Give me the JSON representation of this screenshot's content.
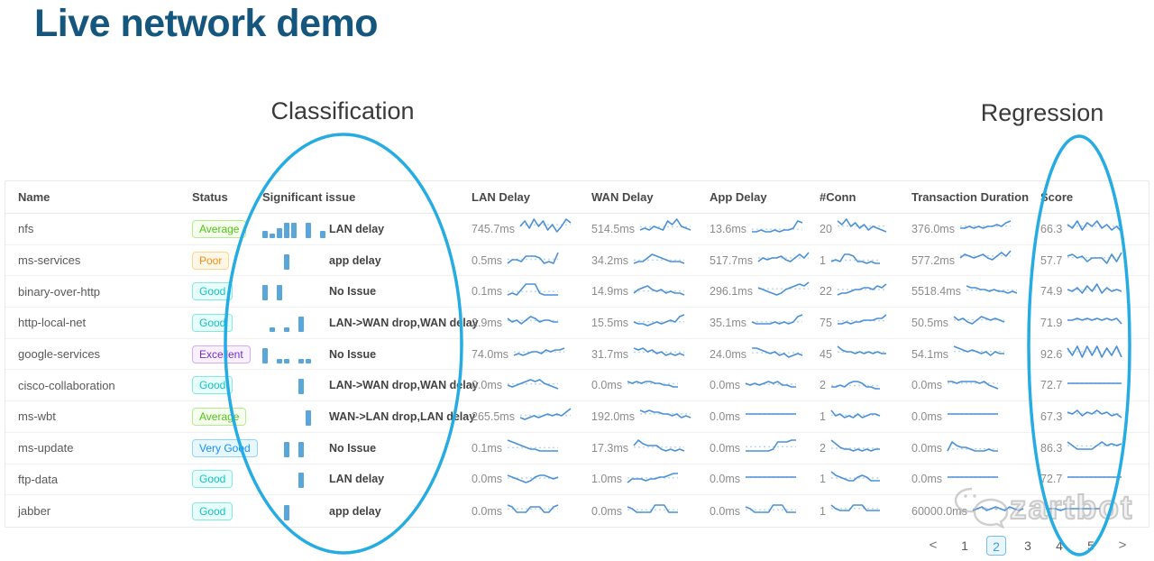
{
  "title": "Live network demo",
  "annotations": {
    "classification_label": "Classification",
    "regression_label": "Regression",
    "ellipse_color": "#25ace3"
  },
  "watermark": {
    "text": "zartbot",
    "icon": "wechat-chat-bubbles-icon"
  },
  "pagination": {
    "prev": "<",
    "next": ">",
    "pages": [
      "1",
      "2",
      "3",
      "4",
      "5"
    ],
    "active": "2"
  },
  "colors": {
    "title": "#15567f",
    "sparkline": "#4a90d9",
    "sparkline_dotted": "#b9d7f2",
    "issue_bar": "#58a6da"
  },
  "table": {
    "columns": [
      "Name",
      "Status",
      "Significant issue",
      "LAN Delay",
      "WAN Delay",
      "App Delay",
      "#Conn",
      "Transaction Duration",
      "Score"
    ],
    "rows": [
      {
        "name": "nfs",
        "status": "Average",
        "status_color": "green",
        "issue": "LAN delay",
        "issue_bars": [
          2,
          1,
          3,
          5,
          5,
          0,
          5,
          0,
          2
        ],
        "lan": "745.7ms",
        "wan": "514.5ms",
        "app": "13.6ms",
        "conn": "20",
        "trans": "376.0ms",
        "score": "66.3",
        "lan_s": [
          5,
          8,
          4,
          9,
          5,
          8,
          3,
          6,
          2,
          5,
          9,
          7
        ],
        "wan_s": [
          3,
          4,
          3,
          5,
          4,
          3,
          8,
          6,
          9,
          5,
          4,
          3
        ],
        "app_s": [
          2,
          2,
          3,
          2,
          2,
          3,
          2,
          3,
          3,
          4,
          8,
          7
        ],
        "conn_s": [
          8,
          6,
          9,
          5,
          7,
          4,
          6,
          3,
          5,
          4,
          3,
          2
        ],
        "trans_s": [
          4,
          4,
          5,
          4,
          5,
          4,
          5,
          5,
          6,
          5,
          7,
          8
        ],
        "score_s": [
          6,
          4,
          8,
          3,
          7,
          5,
          8,
          4,
          6,
          3,
          5,
          2
        ]
      },
      {
        "name": "ms-services",
        "status": "Poor",
        "status_color": "orange",
        "issue": "app delay",
        "issue_bars": [
          0,
          0,
          0,
          5
        ],
        "lan": "0.5ms",
        "wan": "34.2ms",
        "app": "517.7ms",
        "conn": "1",
        "trans": "577.2ms",
        "score": "57.7",
        "lan_s": [
          2,
          4,
          4,
          3,
          6,
          6,
          6,
          5,
          2,
          3,
          2,
          8
        ],
        "wan_s": [
          2,
          3,
          3,
          5,
          7,
          6,
          5,
          4,
          3,
          3,
          3,
          2
        ],
        "app_s": [
          3,
          5,
          4,
          5,
          5,
          6,
          4,
          3,
          5,
          7,
          5,
          8
        ],
        "conn_s": [
          3,
          4,
          3,
          7,
          7,
          6,
          3,
          3,
          2,
          3,
          2,
          2
        ],
        "trans_s": [
          5,
          7,
          6,
          5,
          6,
          7,
          5,
          4,
          6,
          8,
          6,
          9
        ],
        "score_s": [
          6,
          7,
          5,
          6,
          3,
          5,
          5,
          5,
          2,
          7,
          3,
          8
        ]
      },
      {
        "name": "binary-over-http",
        "status": "Good",
        "status_color": "cyan",
        "issue": "No Issue",
        "issue_bars": [
          5,
          0,
          5
        ],
        "lan": "0.1ms",
        "wan": "14.9ms",
        "app": "296.1ms",
        "conn": "22",
        "trans": "5518.4ms",
        "score": "74.9",
        "lan_s": [
          2,
          3,
          2,
          5,
          8,
          8,
          8,
          3,
          2,
          2,
          2,
          2
        ],
        "wan_s": [
          3,
          5,
          6,
          7,
          5,
          4,
          5,
          3,
          4,
          3,
          3,
          2
        ],
        "app_s": [
          6,
          5,
          4,
          3,
          2,
          3,
          5,
          6,
          7,
          8,
          7,
          9
        ],
        "conn_s": [
          2,
          3,
          3,
          4,
          5,
          5,
          6,
          6,
          5,
          7,
          6,
          8
        ],
        "trans_s": [
          7,
          6,
          6,
          5,
          5,
          4,
          5,
          4,
          4,
          3,
          4,
          3
        ],
        "score_s": [
          5,
          4,
          6,
          3,
          7,
          4,
          8,
          3,
          6,
          4,
          5,
          4
        ]
      },
      {
        "name": "http-local-net",
        "status": "Good",
        "status_color": "cyan",
        "issue": "LAN->WAN drop,WAN delay",
        "issue_bars": [
          0,
          1,
          0,
          1,
          0,
          5
        ],
        "lan": "2.9ms",
        "wan": "15.5ms",
        "app": "35.1ms",
        "conn": "75",
        "trans": "50.5ms",
        "score": "71.9",
        "lan_s": [
          6,
          4,
          5,
          3,
          5,
          7,
          6,
          4,
          5,
          5,
          4,
          4
        ],
        "wan_s": [
          4,
          3,
          3,
          2,
          3,
          4,
          3,
          4,
          5,
          4,
          7,
          8
        ],
        "app_s": [
          4,
          3,
          3,
          3,
          3,
          4,
          3,
          4,
          3,
          4,
          7,
          8
        ],
        "conn_s": [
          3,
          3,
          4,
          3,
          4,
          4,
          5,
          5,
          5,
          6,
          6,
          8
        ],
        "trans_s": [
          7,
          5,
          6,
          4,
          3,
          5,
          7,
          6,
          5,
          6,
          5,
          4
        ],
        "score_s": [
          5,
          5,
          6,
          5,
          6,
          5,
          6,
          5,
          6,
          5,
          6,
          3
        ]
      },
      {
        "name": "google-services",
        "status": "Excellent",
        "status_color": "purple",
        "issue": "No Issue",
        "issue_bars": [
          5,
          0,
          1,
          1,
          0,
          1,
          1
        ],
        "lan": "74.0ms",
        "wan": "31.7ms",
        "app": "24.0ms",
        "conn": "45",
        "trans": "54.1ms",
        "score": "92.6",
        "lan_s": [
          3,
          4,
          3,
          4,
          5,
          5,
          4,
          6,
          5,
          6,
          6,
          7
        ],
        "wan_s": [
          7,
          6,
          7,
          5,
          6,
          4,
          5,
          3,
          4,
          3,
          4,
          3
        ],
        "app_s": [
          7,
          7,
          6,
          5,
          4,
          5,
          3,
          4,
          2,
          3,
          4,
          3
        ],
        "conn_s": [
          8,
          6,
          5,
          5,
          4,
          5,
          4,
          5,
          4,
          5,
          4,
          4
        ],
        "trans_s": [
          8,
          7,
          6,
          5,
          6,
          5,
          4,
          5,
          3,
          5,
          4,
          4
        ],
        "score_s": [
          7,
          3,
          8,
          2,
          8,
          3,
          8,
          2,
          7,
          3,
          8,
          2
        ]
      },
      {
        "name": "cisco-collaboration",
        "status": "Good",
        "status_color": "cyan",
        "issue": "LAN->WAN drop,WAN delay",
        "issue_bars": [
          0,
          0,
          0,
          0,
          0,
          5
        ],
        "lan": "0.0ms",
        "wan": "0.0ms",
        "app": "0.0ms",
        "conn": "2",
        "trans": "0.0ms",
        "score": "72.7",
        "lan_s": [
          4,
          3,
          4,
          5,
          6,
          7,
          6,
          7,
          5,
          4,
          3,
          2
        ],
        "wan_s": [
          6,
          5,
          6,
          5,
          6,
          6,
          5,
          5,
          4,
          4,
          3,
          3
        ],
        "app_s": [
          5,
          4,
          5,
          4,
          5,
          6,
          5,
          6,
          4,
          4,
          3,
          3
        ],
        "conn_s": [
          3,
          3,
          4,
          3,
          5,
          6,
          6,
          5,
          3,
          3,
          2,
          2
        ],
        "trans_s": [
          6,
          6,
          5,
          6,
          6,
          6,
          6,
          5,
          6,
          4,
          3,
          2
        ],
        "score_s": [
          5,
          5,
          5,
          5,
          5,
          5,
          5,
          5,
          5,
          5,
          5,
          5
        ]
      },
      {
        "name": "ms-wbt",
        "status": "Average",
        "status_color": "green",
        "issue": "WAN->LAN drop,LAN delay",
        "issue_bars": [
          0,
          0,
          0,
          0,
          0,
          0,
          5
        ],
        "lan": "265.5ms",
        "wan": "192.0ms",
        "app": "0.0ms",
        "conn": "1",
        "trans": "0.0ms",
        "score": "67.3",
        "lan_s": [
          3,
          2,
          3,
          4,
          3,
          4,
          5,
          4,
          5,
          4,
          6,
          8
        ],
        "wan_s": [
          7,
          6,
          7,
          6,
          6,
          5,
          5,
          4,
          5,
          3,
          4,
          3
        ],
        "app_s": [
          5,
          5,
          5,
          5,
          5,
          5,
          5,
          5,
          5,
          5,
          5,
          5
        ],
        "conn_s": [
          7,
          4,
          5,
          3,
          4,
          3,
          5,
          3,
          4,
          5,
          5,
          4
        ],
        "trans_s": [
          5,
          5,
          5,
          5,
          5,
          5,
          5,
          5,
          5,
          5,
          5,
          5
        ],
        "score_s": [
          6,
          5,
          7,
          4,
          6,
          5,
          7,
          5,
          6,
          4,
          5,
          3
        ]
      },
      {
        "name": "ms-update",
        "status": "Very Good",
        "status_color": "blue",
        "issue": "No Issue",
        "issue_bars": [
          0,
          0,
          0,
          5,
          0,
          5
        ],
        "lan": "0.1ms",
        "wan": "17.3ms",
        "app": "0.0ms",
        "conn": "2",
        "trans": "0.0ms",
        "score": "86.3",
        "lan_s": [
          8,
          7,
          6,
          5,
          4,
          3,
          3,
          2,
          2,
          2,
          2,
          2
        ],
        "wan_s": [
          5,
          8,
          6,
          5,
          5,
          5,
          3,
          2,
          3,
          2,
          3,
          2
        ],
        "app_s": [
          2,
          2,
          2,
          2,
          2,
          2,
          3,
          7,
          7,
          7,
          8,
          8
        ],
        "conn_s": [
          8,
          6,
          4,
          3,
          3,
          2,
          3,
          2,
          3,
          2,
          3,
          3
        ],
        "trans_s": [
          2,
          7,
          5,
          4,
          4,
          3,
          2,
          2,
          2,
          3,
          2,
          2
        ],
        "score_s": [
          7,
          5,
          3,
          3,
          3,
          3,
          5,
          7,
          5,
          6,
          5,
          6
        ]
      },
      {
        "name": "ftp-data",
        "status": "Good",
        "status_color": "cyan",
        "issue": "LAN delay",
        "issue_bars": [
          0,
          0,
          0,
          0,
          0,
          5
        ],
        "lan": "0.0ms",
        "wan": "1.0ms",
        "app": "0.0ms",
        "conn": "1",
        "trans": "0.0ms",
        "score": "72.7",
        "lan_s": [
          6,
          5,
          4,
          3,
          2,
          3,
          5,
          6,
          6,
          5,
          4,
          5
        ],
        "wan_s": [
          2,
          4,
          4,
          4,
          3,
          4,
          4,
          5,
          5,
          6,
          7,
          7
        ],
        "app_s": [
          5,
          5,
          5,
          5,
          5,
          5,
          5,
          5,
          5,
          5,
          5,
          5
        ],
        "conn_s": [
          8,
          6,
          5,
          4,
          3,
          3,
          5,
          6,
          5,
          3,
          3,
          3
        ],
        "trans_s": [
          5,
          5,
          5,
          5,
          5,
          5,
          5,
          5,
          5,
          5,
          5,
          5
        ],
        "score_s": [
          5,
          5,
          5,
          5,
          5,
          5,
          5,
          5,
          5,
          5,
          5,
          5
        ]
      },
      {
        "name": "jabber",
        "status": "Good",
        "status_color": "cyan",
        "issue": "app delay",
        "issue_bars": [
          0,
          0,
          0,
          5
        ],
        "lan": "0.0ms",
        "wan": "0.0ms",
        "app": "0.0ms",
        "conn": "1",
        "trans": "60000.0ms",
        "score": "",
        "lan_s": [
          7,
          6,
          3,
          3,
          3,
          6,
          6,
          6,
          3,
          3,
          6,
          7
        ],
        "wan_s": [
          6,
          5,
          3,
          3,
          3,
          3,
          7,
          7,
          7,
          3,
          3,
          3
        ],
        "app_s": [
          6,
          5,
          3,
          3,
          3,
          3,
          7,
          7,
          7,
          3,
          3,
          3
        ],
        "conn_s": [
          7,
          5,
          4,
          4,
          4,
          7,
          7,
          7,
          4,
          4,
          4,
          4
        ],
        "trans_s": [
          4,
          5,
          6,
          4,
          5,
          6,
          5,
          4,
          6,
          5,
          4,
          5
        ],
        "score_s": [
          5,
          5,
          5,
          4,
          5,
          5,
          5,
          5,
          5,
          5,
          5,
          5
        ]
      }
    ]
  }
}
